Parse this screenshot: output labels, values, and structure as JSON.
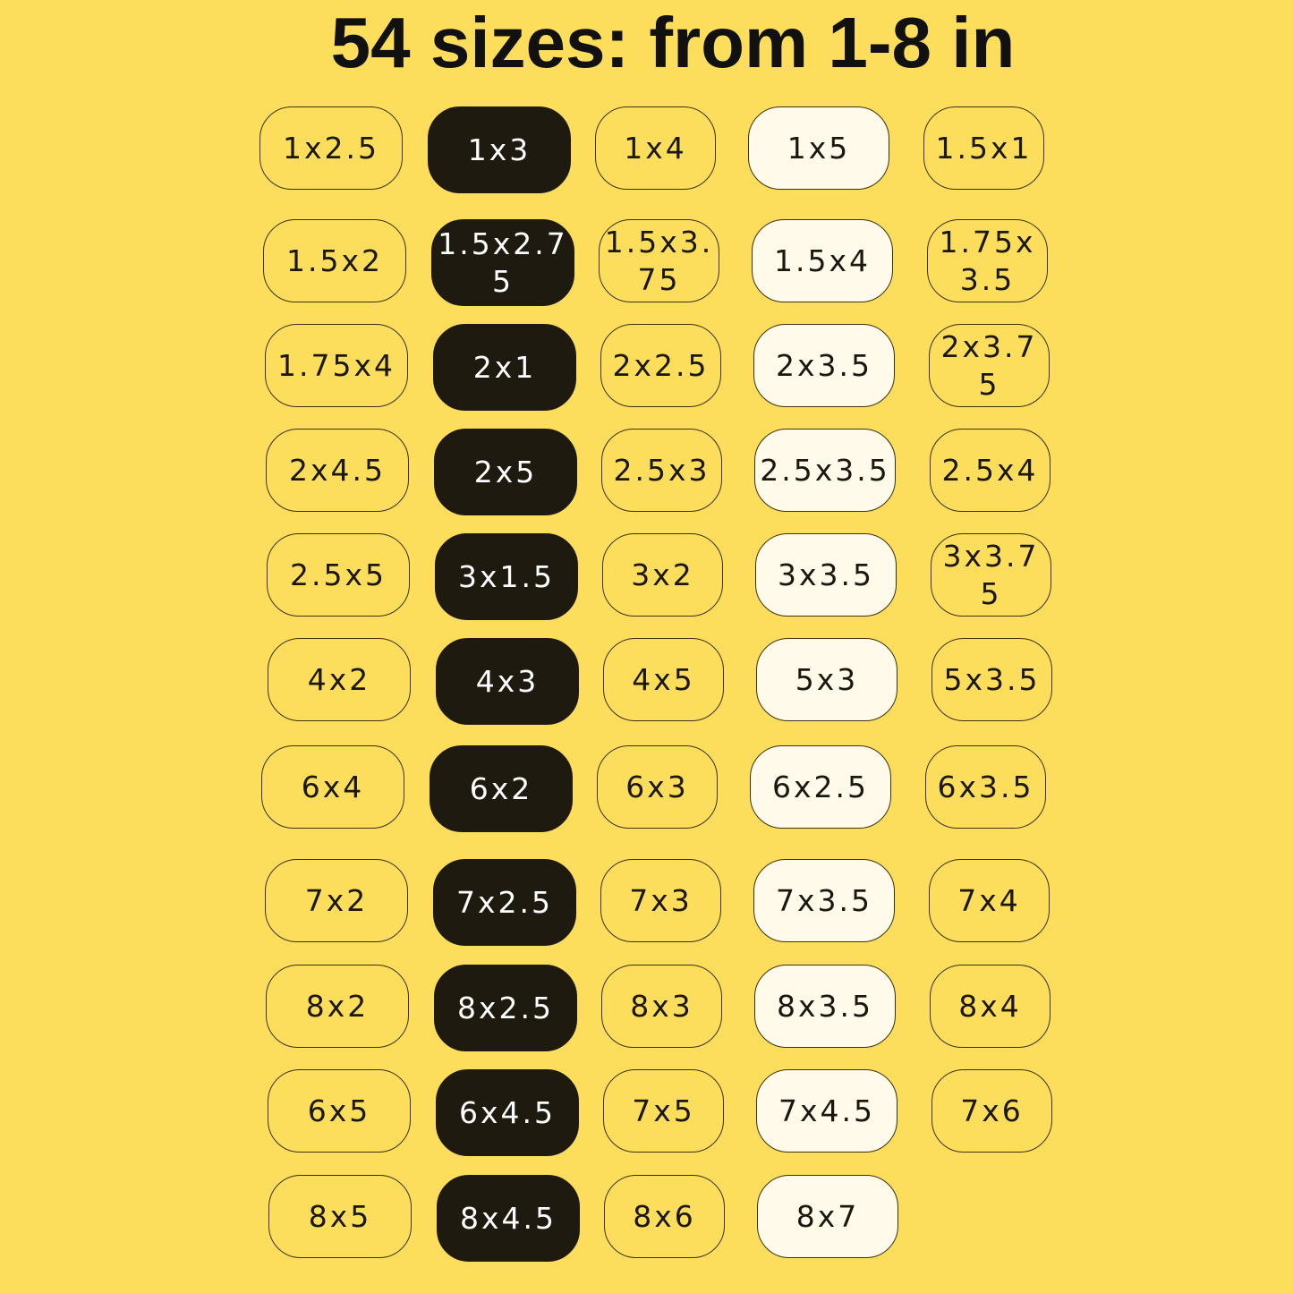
{
  "title": "54 sizes: from 1-8 in",
  "colors": {
    "background": "#FDDD5C",
    "dark_pill": "#1F1A10",
    "light_pill": "#FFFAEA"
  },
  "column_styles": [
    "outline",
    "dark",
    "outline",
    "light",
    "outline"
  ],
  "rows": [
    [
      "1x2.5",
      "1x3",
      "1x4",
      "1x5",
      "1.5x1"
    ],
    [
      "1.5x2",
      "1.5x2.75",
      "1.5x3.75",
      "1.5x4",
      "1.75x3.5"
    ],
    [
      "1.75x4",
      "2x1",
      "2x2.5",
      "2x3.5",
      "2x3.75"
    ],
    [
      "2x4.5",
      "2x5",
      "2.5x3",
      "2.5x3.5",
      "2.5x4"
    ],
    [
      "2.5x5",
      "3x1.5",
      "3x2",
      "3x3.5",
      "3x3.75"
    ],
    [
      "4x2",
      "4x3",
      "4x5",
      "5x3",
      "5x3.5"
    ],
    [
      "6x4",
      "6x2",
      "6x3",
      "6x2.5",
      "6x3.5"
    ],
    [
      "7x2",
      "7x2.5",
      "7x3",
      "7x3.5",
      "7x4"
    ],
    [
      "8x2",
      "8x2.5",
      "8x3",
      "8x3.5",
      "8x4"
    ],
    [
      "6x5",
      "6x4.5",
      "7x5",
      "7x4.5",
      "7x6"
    ],
    [
      "8x5",
      "8x4.5",
      "8x6",
      "8x7"
    ]
  ]
}
